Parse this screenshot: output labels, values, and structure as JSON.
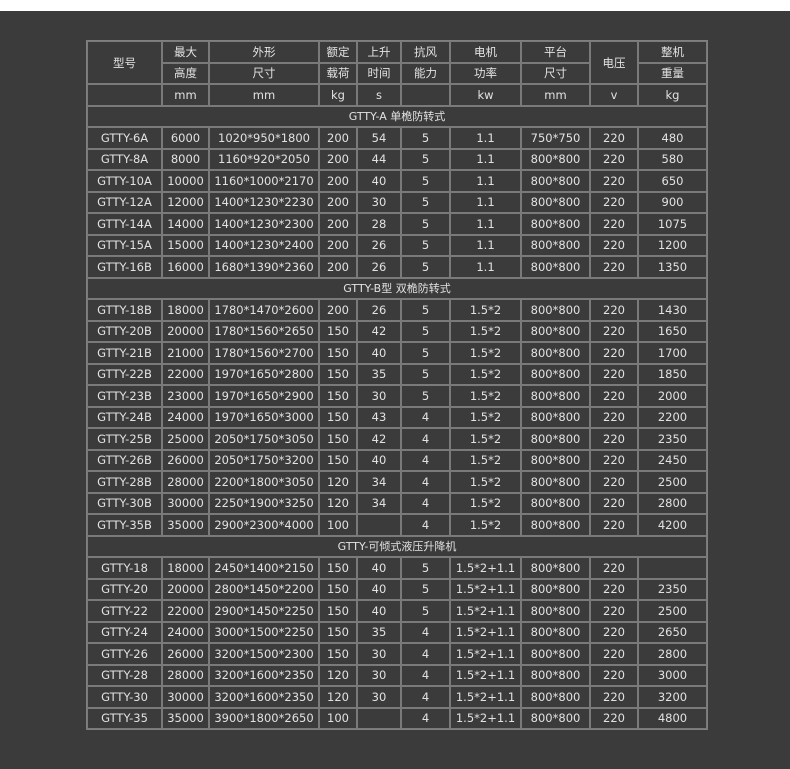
{
  "header": {
    "model": "型号",
    "row1": [
      "最大",
      "外形",
      "额定",
      "上升",
      "抗风",
      "电机",
      "平台",
      "电压",
      "整机"
    ],
    "row2": [
      "高度",
      "尺寸",
      "载荷",
      "时间",
      "能力",
      "功率",
      "尺寸",
      "重量"
    ],
    "units": [
      "mm",
      "mm",
      "kg",
      "s",
      "",
      "kw",
      "mm",
      "v",
      "kg"
    ]
  },
  "sections": [
    {
      "title": "GTTY-A 单桅防转式",
      "rows": [
        [
          "GTTY-6A",
          "6000",
          "1020*950*1800",
          "200",
          "54",
          "5",
          "1.1",
          "750*750",
          "220",
          "480"
        ],
        [
          "GTTY-8A",
          "8000",
          "1160*920*2050",
          "200",
          "44",
          "5",
          "1.1",
          "800*800",
          "220",
          "580"
        ],
        [
          "GTTY-10A",
          "10000",
          "1160*1000*2170",
          "200",
          "40",
          "5",
          "1.1",
          "800*800",
          "220",
          "650"
        ],
        [
          "GTTY-12A",
          "12000",
          "1400*1230*2230",
          "200",
          "30",
          "5",
          "1.1",
          "800*800",
          "220",
          "900"
        ],
        [
          "GTTY-14A",
          "14000",
          "1400*1230*2300",
          "200",
          "28",
          "5",
          "1.1",
          "800*800",
          "220",
          "1075"
        ],
        [
          "GTTY-15A",
          "15000",
          "1400*1230*2400",
          "200",
          "26",
          "5",
          "1.1",
          "800*800",
          "220",
          "1200"
        ],
        [
          "GTTY-16B",
          "16000",
          "1680*1390*2360",
          "200",
          "26",
          "5",
          "1.1",
          "800*800",
          "220",
          "1350"
        ]
      ]
    },
    {
      "title": "GTTY-B型 双桅防转式",
      "rows": [
        [
          "GTTY-18B",
          "18000",
          "1780*1470*2600",
          "200",
          "26",
          "5",
          "1.5*2",
          "800*800",
          "220",
          "1430"
        ],
        [
          "GTTY-20B",
          "20000",
          "1780*1560*2650",
          "150",
          "42",
          "5",
          "1.5*2",
          "800*800",
          "220",
          "1650"
        ],
        [
          "GTTY-21B",
          "21000",
          "1780*1560*2700",
          "150",
          "40",
          "5",
          "1.5*2",
          "800*800",
          "220",
          "1700"
        ],
        [
          "GTTY-22B",
          "22000",
          "1970*1650*2800",
          "150",
          "35",
          "5",
          "1.5*2",
          "800*800",
          "220",
          "1850"
        ],
        [
          "GTTY-23B",
          "23000",
          "1970*1650*2900",
          "150",
          "30",
          "5",
          "1.5*2",
          "800*800",
          "220",
          "2000"
        ],
        [
          "GTTY-24B",
          "24000",
          "1970*1650*3000",
          "150",
          "43",
          "4",
          "1.5*2",
          "800*800",
          "220",
          "2200"
        ],
        [
          "GTTY-25B",
          "25000",
          "2050*1750*3050",
          "150",
          "42",
          "4",
          "1.5*2",
          "800*800",
          "220",
          "2350"
        ],
        [
          "GTTY-26B",
          "26000",
          "2050*1750*3200",
          "150",
          "40",
          "4",
          "1.5*2",
          "800*800",
          "220",
          "2450"
        ],
        [
          "GTTY-28B",
          "28000",
          "2200*1800*3050",
          "120",
          "34",
          "4",
          "1.5*2",
          "800*800",
          "220",
          "2500"
        ],
        [
          "GTTY-30B",
          "30000",
          "2250*1900*3250",
          "120",
          "34",
          "4",
          "1.5*2",
          "800*800",
          "220",
          "2800"
        ],
        [
          "GTTY-35B",
          "35000",
          "2900*2300*4000",
          "100",
          "",
          "4",
          "1.5*2",
          "800*800",
          "220",
          "4200"
        ]
      ]
    },
    {
      "title": "GTTY-可倾式液压升降机",
      "rows": [
        [
          "GTTY-18",
          "18000",
          "2450*1400*2150",
          "150",
          "40",
          "5",
          "1.5*2+1.1",
          "800*800",
          "220",
          ""
        ],
        [
          "GTTY-20",
          "20000",
          "2800*1450*2200",
          "150",
          "40",
          "5",
          "1.5*2+1.1",
          "800*800",
          "220",
          "2350"
        ],
        [
          "GTTY-22",
          "22000",
          "2900*1450*2250",
          "150",
          "40",
          "5",
          "1.5*2+1.1",
          "800*800",
          "220",
          "2500"
        ],
        [
          "GTTY-24",
          "24000",
          "3000*1500*2250",
          "150",
          "35",
          "4",
          "1.5*2+1.1",
          "800*800",
          "220",
          "2650"
        ],
        [
          "GTTY-26",
          "26000",
          "3200*1500*2300",
          "150",
          "30",
          "4",
          "1.5*2+1.1",
          "800*800",
          "220",
          "2800"
        ],
        [
          "GTTY-28",
          "28000",
          "3200*1600*2350",
          "120",
          "30",
          "4",
          "1.5*2+1.1",
          "800*800",
          "220",
          "3000"
        ],
        [
          "GTTY-30",
          "30000",
          "3200*1600*2350",
          "120",
          "30",
          "4",
          "1.5*2+1.1",
          "800*800",
          "220",
          "3200"
        ],
        [
          "GTTY-35",
          "35000",
          "3900*1800*2650",
          "100",
          "",
          "4",
          "1.5*2+1.1",
          "800*800",
          "220",
          "4800"
        ]
      ]
    }
  ]
}
